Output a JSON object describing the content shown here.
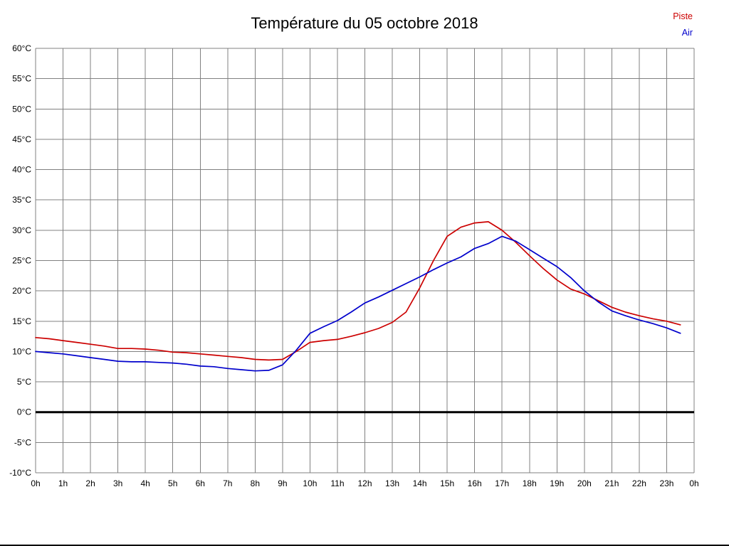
{
  "title": "Température du 05 octobre 2018",
  "legend": [
    {
      "label": "Piste",
      "color": "#cc0000"
    },
    {
      "label": "Air",
      "color": "#0000cc"
    }
  ],
  "chart_data": {
    "type": "line",
    "title": "Température du 05 octobre 2018",
    "xlabel": "",
    "ylabel": "",
    "xlim": [
      0,
      24
    ],
    "ylim": [
      -10,
      60
    ],
    "grid": true,
    "grid_color": "#808080",
    "zero_line": {
      "value": 0,
      "color": "#000000",
      "width": 3
    },
    "legend_position": "top-right",
    "y_tick_step": 5,
    "x_tick_labels": [
      "0h",
      "1h",
      "2h",
      "3h",
      "4h",
      "5h",
      "6h",
      "7h",
      "8h",
      "9h",
      "10h",
      "11h",
      "12h",
      "13h",
      "14h",
      "15h",
      "16h",
      "17h",
      "18h",
      "19h",
      "20h",
      "21h",
      "22h",
      "23h",
      "0h"
    ],
    "y_tick_labels": [
      "60°C",
      "55°C",
      "50°C",
      "45°C",
      "40°C",
      "35°C",
      "30°C",
      "25°C",
      "20°C",
      "15°C",
      "10°C",
      "5°C",
      "0°C",
      "-5°C",
      "-10°C"
    ],
    "x": [
      0,
      0.5,
      1,
      1.5,
      2,
      2.5,
      3,
      3.5,
      4,
      4.5,
      5,
      5.5,
      6,
      6.5,
      7,
      7.5,
      8,
      8.5,
      9,
      9.5,
      10,
      10.5,
      11,
      11.5,
      12,
      12.5,
      13,
      13.5,
      14,
      14.5,
      15,
      15.5,
      16,
      16.5,
      17,
      17.5,
      18,
      18.5,
      19,
      19.5,
      20,
      20.5,
      21,
      21.5,
      22,
      22.5,
      23,
      23.5
    ],
    "series": [
      {
        "name": "Piste",
        "color": "#cc0000",
        "values": [
          12.3,
          12.1,
          11.8,
          11.5,
          11.2,
          10.9,
          10.5,
          10.5,
          10.4,
          10.2,
          9.9,
          9.8,
          9.6,
          9.4,
          9.2,
          9.0,
          8.7,
          8.6,
          8.7,
          10.0,
          11.5,
          11.8,
          12.0,
          12.5,
          13.1,
          13.8,
          14.8,
          16.5,
          20.5,
          25.0,
          29.0,
          30.5,
          31.2,
          31.4,
          30.0,
          28.0,
          25.8,
          23.7,
          21.8,
          20.3,
          19.5,
          18.4,
          17.3,
          16.5,
          15.9,
          15.4,
          15.0,
          14.4
        ]
      },
      {
        "name": "Air",
        "color": "#0000cc",
        "values": [
          10.0,
          9.8,
          9.6,
          9.3,
          9.0,
          8.7,
          8.4,
          8.3,
          8.3,
          8.2,
          8.1,
          7.9,
          7.6,
          7.5,
          7.2,
          7.0,
          6.8,
          6.9,
          7.8,
          10.2,
          13.0,
          14.1,
          15.1,
          16.5,
          18.0,
          19.0,
          20.1,
          21.2,
          22.3,
          23.5,
          24.6,
          25.6,
          27.0,
          27.8,
          29.0,
          28.2,
          26.8,
          25.4,
          24.0,
          22.2,
          20.0,
          18.2,
          16.7,
          15.9,
          15.2,
          14.6,
          13.9,
          13.0
        ]
      }
    ]
  }
}
